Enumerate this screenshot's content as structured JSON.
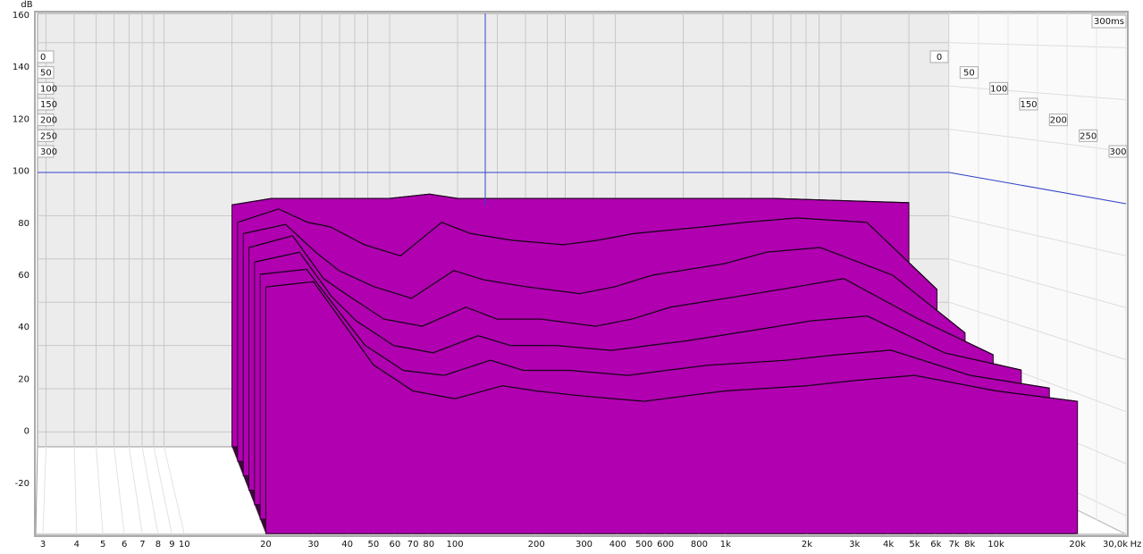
{
  "chart_data": {
    "type": "waterfall",
    "ylabel": "dB",
    "xlabel": "Hz",
    "time_end_label": "300ms",
    "ylim": [
      -40,
      160
    ],
    "yticks": [
      160,
      140,
      120,
      100,
      80,
      60,
      40,
      20,
      0,
      -20
    ],
    "xlim": [
      3,
      30000
    ],
    "xscale": "log",
    "xticks": [
      3,
      4,
      5,
      6,
      7,
      8,
      9,
      10,
      20,
      30,
      40,
      50,
      60,
      70,
      80,
      100,
      200,
      300,
      400,
      500,
      600,
      800,
      {
        "value": 1000,
        "label": "1k"
      },
      {
        "value": 2000,
        "label": "2k"
      },
      {
        "value": 3000,
        "label": "3k"
      },
      {
        "value": 4000,
        "label": "4k"
      },
      {
        "value": 5000,
        "label": "5k"
      },
      {
        "value": 6000,
        "label": "6k"
      },
      {
        "value": 7000,
        "label": "7k"
      },
      {
        "value": 8000,
        "label": "8k"
      },
      {
        "value": 10000,
        "label": "10k"
      },
      {
        "value": 20000,
        "label": "20k"
      },
      {
        "value": 30000,
        "label": "30,0k"
      }
    ],
    "zlim": [
      0,
      300
    ],
    "zticks": [
      0,
      50,
      100,
      150,
      200,
      250,
      300
    ],
    "color": "#b000b0",
    "grid": true,
    "x": [
      20,
      30,
      40,
      50,
      70,
      100,
      150,
      200,
      300,
      500,
      700,
      1000,
      2000,
      3000,
      5000,
      10000,
      20000
    ],
    "series": [
      {
        "name": "0",
        "values": [
          85,
          88,
          88,
          88,
          88,
          88,
          90,
          88,
          88,
          88,
          88,
          88,
          88,
          88,
          88,
          87,
          86
        ]
      },
      {
        "name": "50",
        "values": [
          80,
          86,
          80,
          78,
          70,
          65,
          80,
          75,
          72,
          70,
          72,
          75,
          78,
          80,
          82,
          80,
          50
        ]
      },
      {
        "name": "100",
        "values": [
          78,
          82,
          70,
          62,
          55,
          50,
          62,
          58,
          55,
          52,
          55,
          60,
          65,
          70,
          72,
          60,
          35
        ]
      },
      {
        "name": "150",
        "values": [
          75,
          80,
          62,
          55,
          45,
          42,
          50,
          45,
          45,
          42,
          45,
          50,
          55,
          58,
          62,
          45,
          30
        ]
      },
      {
        "name": "200",
        "values": [
          72,
          76,
          58,
          48,
          38,
          35,
          42,
          38,
          38,
          36,
          38,
          40,
          45,
          48,
          50,
          35,
          28
        ]
      },
      {
        "name": "250",
        "values": [
          70,
          72,
          55,
          42,
          32,
          30,
          36,
          32,
          32,
          30,
          32,
          34,
          36,
          38,
          40,
          30,
          25
        ]
      },
      {
        "name": "300",
        "values": [
          68,
          70,
          52,
          38,
          28,
          25,
          30,
          28,
          26,
          24,
          26,
          28,
          30,
          32,
          34,
          28,
          24
        ]
      }
    ]
  }
}
